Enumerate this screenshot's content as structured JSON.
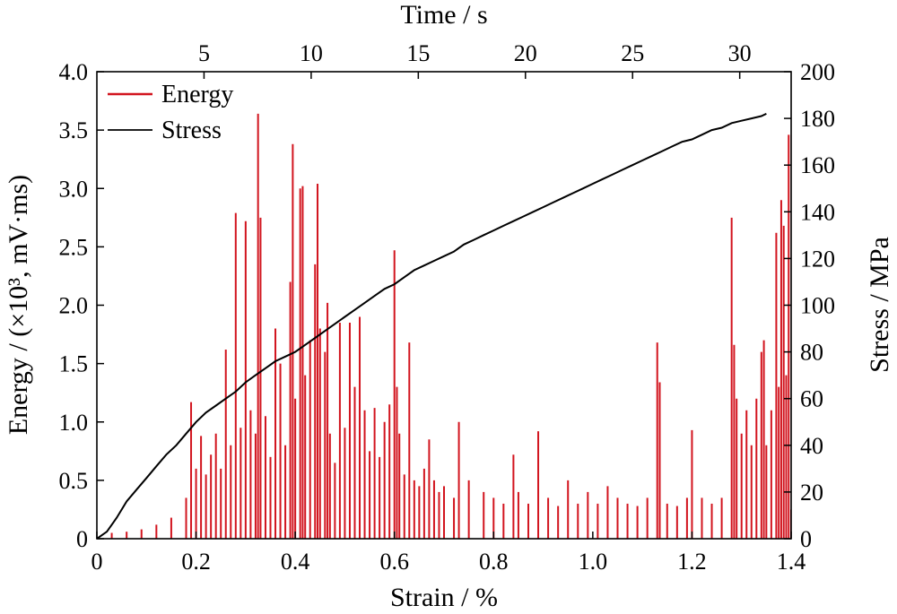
{
  "chart_data": {
    "type": "line",
    "title": "",
    "xlabel": "Strain / %",
    "ylabel_left": "Energy / (×10³, mV·ms)",
    "ylabel_right": "Stress / MPa",
    "xlabel_top": "Time / s",
    "xlim": [
      0,
      1.4
    ],
    "ylim_left": [
      0,
      4.0
    ],
    "ylim_right": [
      0,
      200
    ],
    "time_axis_range": [
      0,
      32.4
    ],
    "grid": false,
    "legend_position": "top-left",
    "x_ticks": [
      "0",
      "0.2",
      "0.4",
      "0.6",
      "0.8",
      "1.0",
      "1.2",
      "1.4"
    ],
    "y_left_ticks": [
      "0",
      "0.5",
      "1.0",
      "1.5",
      "2.0",
      "2.5",
      "3.0",
      "3.5",
      "4.0"
    ],
    "y_right_ticks": [
      "0",
      "20",
      "40",
      "60",
      "80",
      "100",
      "120",
      "140",
      "160",
      "180",
      "200"
    ],
    "top_ticks": [
      "5",
      "10",
      "15",
      "20",
      "25",
      "30"
    ],
    "top_tick_values": [
      5,
      10,
      15,
      20,
      25,
      30
    ],
    "colors": {
      "energy": "#d2141e",
      "stress": "#000000"
    },
    "series": [
      {
        "name": "Energy",
        "axis": "left",
        "style": "spikes",
        "x": [
          0.03,
          0.06,
          0.09,
          0.12,
          0.15,
          0.18,
          0.19,
          0.2,
          0.21,
          0.22,
          0.23,
          0.24,
          0.25,
          0.26,
          0.27,
          0.28,
          0.29,
          0.3,
          0.31,
          0.32,
          0.325,
          0.33,
          0.34,
          0.35,
          0.36,
          0.37,
          0.38,
          0.39,
          0.395,
          0.4,
          0.41,
          0.415,
          0.42,
          0.43,
          0.44,
          0.445,
          0.45,
          0.46,
          0.465,
          0.47,
          0.48,
          0.49,
          0.5,
          0.51,
          0.52,
          0.53,
          0.54,
          0.55,
          0.56,
          0.57,
          0.58,
          0.59,
          0.6,
          0.605,
          0.61,
          0.62,
          0.63,
          0.64,
          0.65,
          0.66,
          0.67,
          0.68,
          0.69,
          0.7,
          0.72,
          0.73,
          0.75,
          0.78,
          0.8,
          0.82,
          0.84,
          0.85,
          0.87,
          0.89,
          0.91,
          0.93,
          0.95,
          0.97,
          0.99,
          1.01,
          1.03,
          1.05,
          1.07,
          1.09,
          1.11,
          1.13,
          1.135,
          1.15,
          1.17,
          1.19,
          1.2,
          1.22,
          1.24,
          1.26,
          1.28,
          1.285,
          1.29,
          1.3,
          1.31,
          1.32,
          1.33,
          1.34,
          1.345,
          1.35,
          1.36,
          1.37,
          1.375,
          1.38,
          1.385,
          1.39,
          1.395,
          1.4
        ],
        "y": [
          0.05,
          0.06,
          0.08,
          0.12,
          0.18,
          0.35,
          1.17,
          0.6,
          0.88,
          0.55,
          0.72,
          0.9,
          0.6,
          1.62,
          0.8,
          2.79,
          0.95,
          2.72,
          1.1,
          0.9,
          3.64,
          2.75,
          1.05,
          0.7,
          1.8,
          1.5,
          0.8,
          2.2,
          3.38,
          1.2,
          3.0,
          3.02,
          1.4,
          1.7,
          2.35,
          3.04,
          1.8,
          1.6,
          2.02,
          0.9,
          0.65,
          1.85,
          0.95,
          1.85,
          1.3,
          1.9,
          1.1,
          0.75,
          1.12,
          0.7,
          1.0,
          1.15,
          2.47,
          1.3,
          0.9,
          0.55,
          1.68,
          0.5,
          0.45,
          0.6,
          0.85,
          0.5,
          0.4,
          0.45,
          0.35,
          1.0,
          0.5,
          0.4,
          0.35,
          0.3,
          0.72,
          0.4,
          0.3,
          0.92,
          0.35,
          0.28,
          0.5,
          0.3,
          0.4,
          0.3,
          0.45,
          0.35,
          0.3,
          0.28,
          0.35,
          1.68,
          1.34,
          0.3,
          0.28,
          0.35,
          0.93,
          0.35,
          0.3,
          0.35,
          2.75,
          1.66,
          1.2,
          0.9,
          1.1,
          0.8,
          1.2,
          1.6,
          1.7,
          0.8,
          1.1,
          2.62,
          1.3,
          2.9,
          2.68,
          1.4,
          3.46,
          0.25
        ]
      },
      {
        "name": "Stress",
        "axis": "right",
        "style": "line",
        "x": [
          0.0,
          0.02,
          0.04,
          0.06,
          0.08,
          0.1,
          0.12,
          0.14,
          0.16,
          0.18,
          0.2,
          0.22,
          0.24,
          0.26,
          0.28,
          0.3,
          0.32,
          0.34,
          0.36,
          0.38,
          0.4,
          0.42,
          0.44,
          0.46,
          0.48,
          0.5,
          0.52,
          0.54,
          0.56,
          0.58,
          0.6,
          0.62,
          0.64,
          0.66,
          0.68,
          0.7,
          0.72,
          0.74,
          0.76,
          0.78,
          0.8,
          0.82,
          0.84,
          0.86,
          0.88,
          0.9,
          0.92,
          0.94,
          0.96,
          0.98,
          1.0,
          1.02,
          1.04,
          1.06,
          1.08,
          1.1,
          1.12,
          1.14,
          1.16,
          1.18,
          1.2,
          1.22,
          1.24,
          1.26,
          1.28,
          1.3,
          1.32,
          1.34,
          1.35
        ],
        "y": [
          0,
          3,
          9,
          16,
          21,
          26,
          31,
          36,
          40,
          45,
          50,
          54,
          57,
          60,
          63,
          67,
          70,
          73,
          76,
          78,
          80,
          83,
          86,
          89,
          92,
          95,
          98,
          101,
          104,
          107,
          109,
          112,
          115,
          117,
          119,
          121,
          123,
          126,
          128,
          130,
          132,
          134,
          136,
          138,
          140,
          142,
          144,
          146,
          148,
          150,
          152,
          154,
          156,
          158,
          160,
          162,
          164,
          166,
          168,
          170,
          171,
          173,
          175,
          176,
          178,
          179,
          180,
          181,
          182
        ]
      }
    ]
  }
}
